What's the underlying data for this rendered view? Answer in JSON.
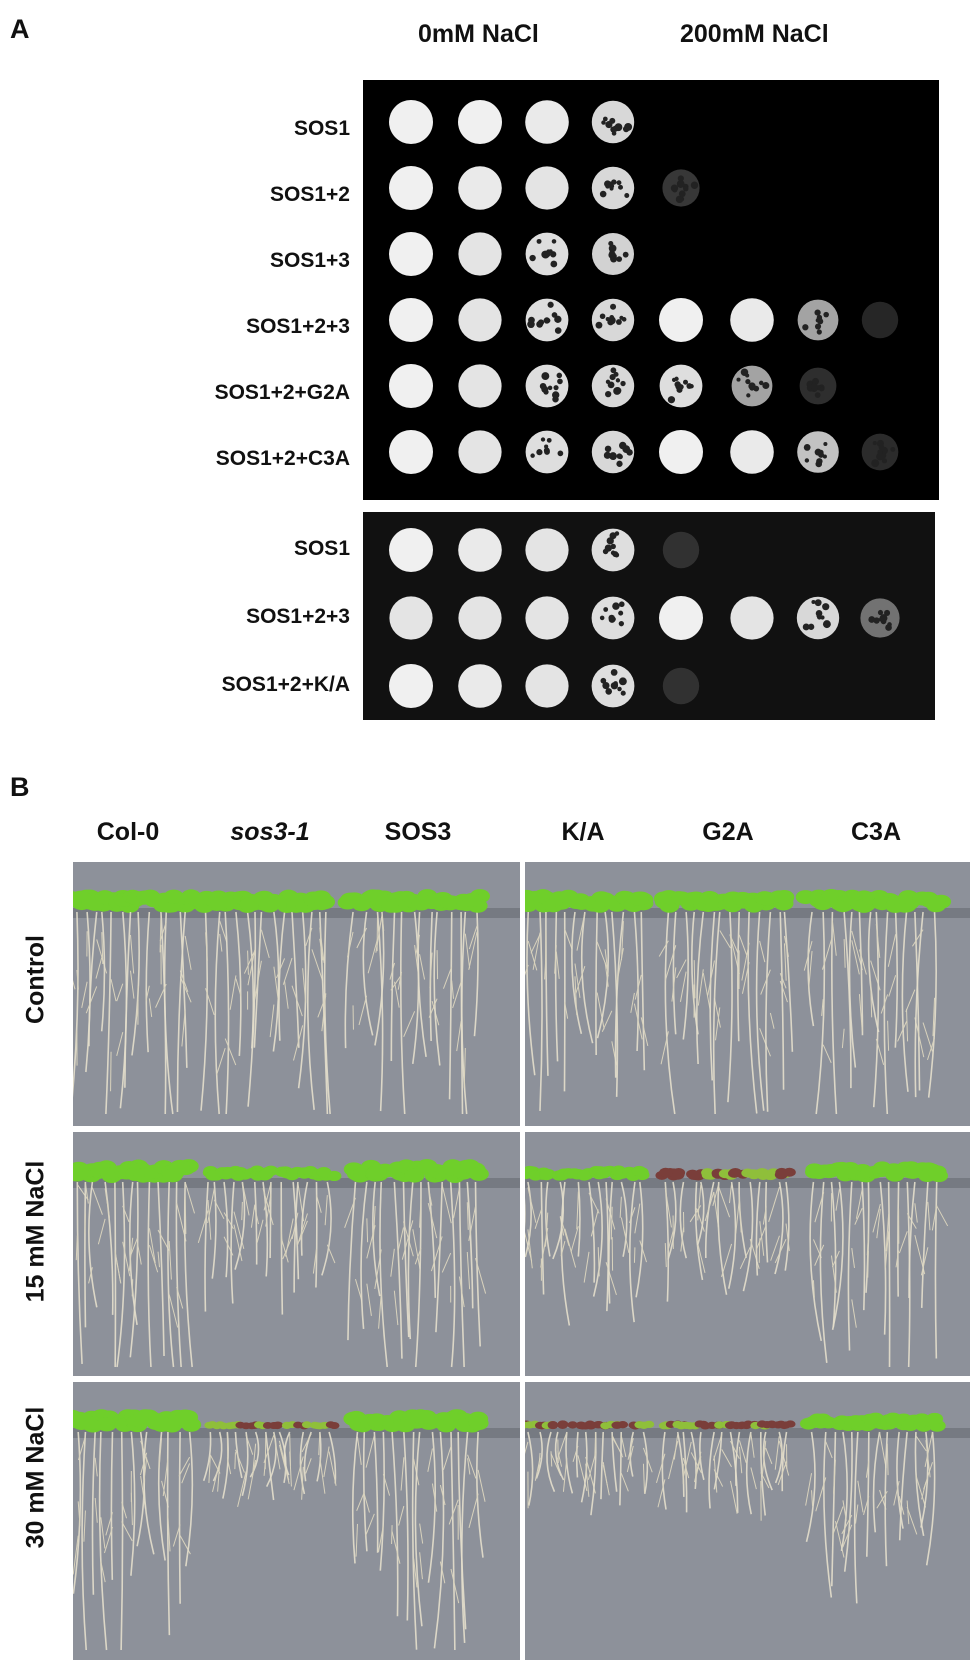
{
  "panel_a": {
    "letter": "A",
    "conditions": [
      "0mM NaCl",
      "200mM NaCl"
    ],
    "plate1": {
      "strains": [
        "SOS1",
        "SOS1+2",
        "SOS1+3",
        "SOS1+2+3",
        "SOS1+2+G2A",
        "SOS1+2+C3A"
      ],
      "growth_0mM": [
        [
          1,
          1,
          0.95,
          0.8
        ],
        [
          1,
          0.95,
          0.9,
          0.8
        ],
        [
          1,
          0.9,
          0.85,
          0.75
        ],
        [
          1,
          0.9,
          0.85,
          0.8
        ],
        [
          1,
          0.9,
          0.85,
          0.8
        ],
        [
          1,
          0.9,
          0.85,
          0.8
        ]
      ],
      "growth_200mM": [
        [
          0,
          0,
          0,
          0
        ],
        [
          0.15,
          0,
          0,
          0
        ],
        [
          0,
          0,
          0,
          0
        ],
        [
          1,
          0.95,
          0.6,
          0.05
        ],
        [
          0.85,
          0.6,
          0.1,
          0
        ],
        [
          1,
          0.95,
          0.7,
          0.08
        ]
      ]
    },
    "plate2": {
      "strains": [
        "SOS1",
        "SOS1+2+3",
        "SOS1+2+K/A"
      ],
      "growth_0mM": [
        [
          1,
          0.95,
          0.9,
          0.85
        ],
        [
          0.9,
          0.9,
          0.9,
          0.85
        ],
        [
          1,
          0.95,
          0.9,
          0.85
        ]
      ],
      "growth_200mM": [
        [
          0.05,
          0,
          0,
          0
        ],
        [
          1,
          0.9,
          0.8,
          0.4
        ],
        [
          0.05,
          0,
          0,
          0
        ]
      ]
    }
  },
  "panel_b": {
    "letter": "B",
    "columns": [
      "Col-0",
      "sos3-1",
      "SOS3",
      "K/A",
      "G2A",
      "C3A"
    ],
    "rows": [
      "Control",
      "15 mM NaCl",
      "30 mM NaCl"
    ],
    "seedling_vigor": [
      [
        1,
        1,
        1,
        1,
        1,
        1
      ],
      [
        1,
        0.55,
        1,
        0.55,
        0.4,
        0.85
      ],
      [
        1,
        0.15,
        1,
        0.2,
        0.2,
        0.75
      ]
    ]
  },
  "colors": {
    "plate_bg": "#000000",
    "agar": "#8d919a",
    "leaf": "#6fcf2a",
    "root": "#e4dfcc"
  }
}
